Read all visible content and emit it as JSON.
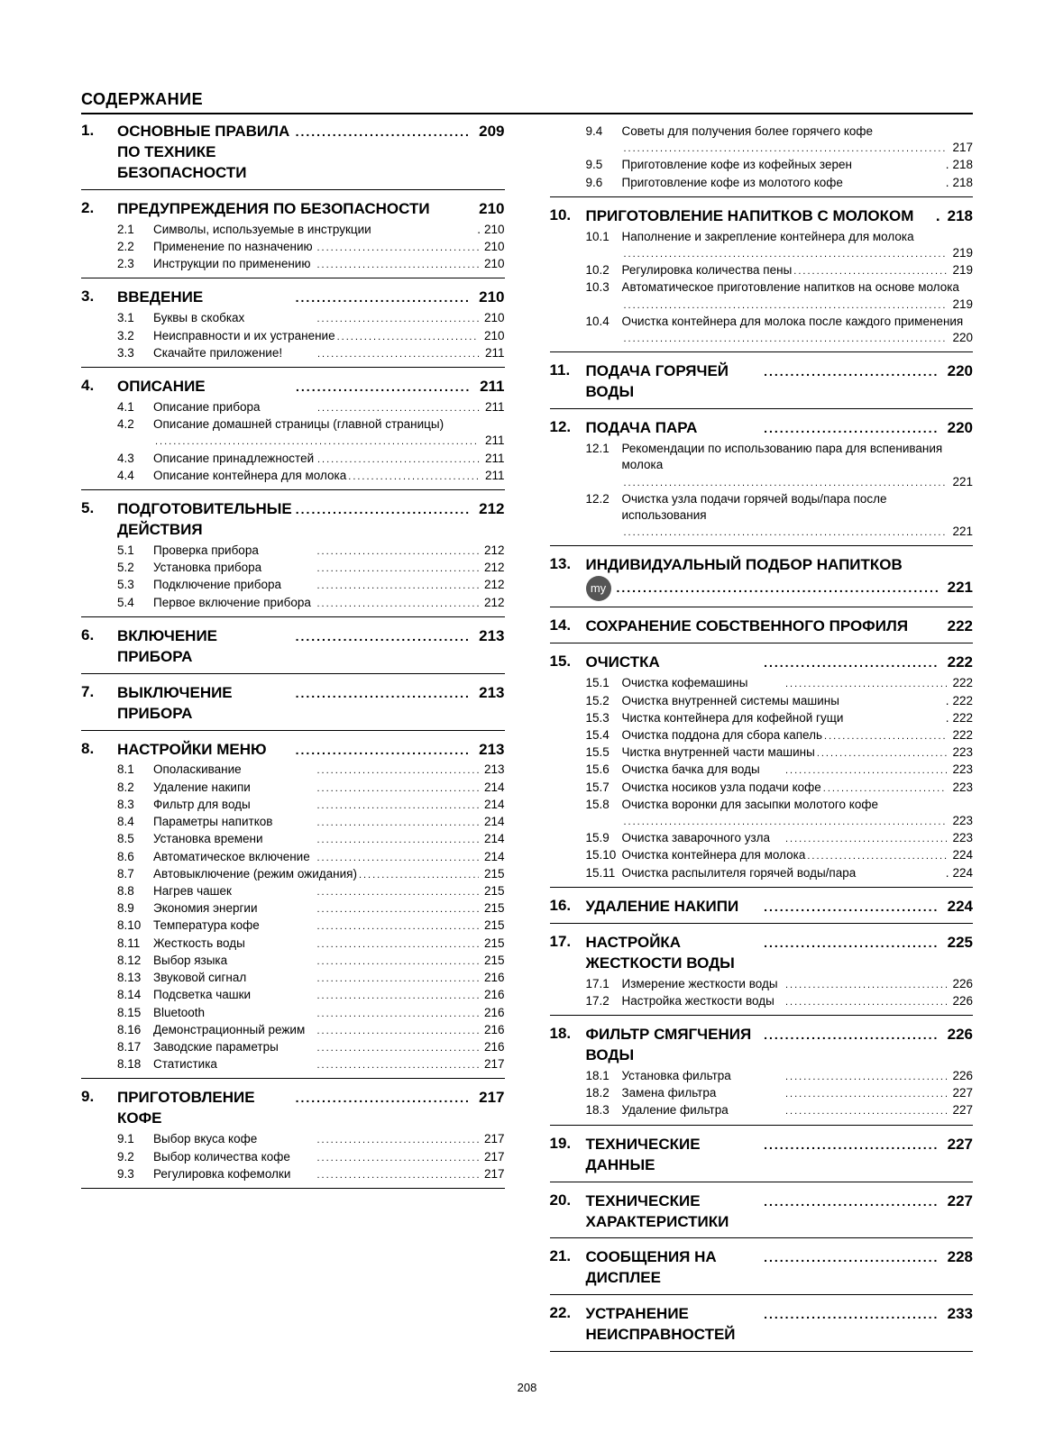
{
  "title": "СОДЕРЖАНИЕ",
  "page_number": "208",
  "columns": [
    [
      {
        "num": "1.",
        "title": "ОСНОВНЫЕ ПРАВИЛА ПО ТЕХНИКЕ БЕЗОПАСНОСТИ",
        "page": "209",
        "subs": []
      },
      {
        "num": "2.",
        "title": "ПРЕДУПРЕЖДЕНИЯ ПО БЕЗОПАСНОСТИ",
        "page": "210",
        "no_dots": true,
        "subs": [
          {
            "num": "2.1",
            "text": "Символы, используемые в инструкции",
            "page": "210",
            "tight": true
          },
          {
            "num": "2.2",
            "text": "Применение по назначению",
            "page": "210"
          },
          {
            "num": "2.3",
            "text": "Инструкции по применению",
            "page": "210"
          }
        ]
      },
      {
        "num": "3.",
        "title": "ВВЕДЕНИЕ",
        "page": "210",
        "subs": [
          {
            "num": "3.1",
            "text": "Буквы в скобках",
            "page": "210"
          },
          {
            "num": "3.2",
            "text": "Неисправности и их устранение",
            "page": "210"
          },
          {
            "num": "3.3",
            "text": "Скачайте приложение!",
            "page": "211"
          }
        ]
      },
      {
        "num": "4.",
        "title": "ОПИСАНИЕ",
        "page": "211",
        "subs": [
          {
            "num": "4.1",
            "text": "Описание прибора",
            "page": "211"
          },
          {
            "num": "4.2",
            "text": "Описание домашней страницы (главной страницы)",
            "page": "211",
            "wrap": true
          },
          {
            "num": "4.3",
            "text": "Описание принадлежностей",
            "page": "211"
          },
          {
            "num": "4.4",
            "text": "Описание контейнера для молока",
            "page": "211"
          }
        ]
      },
      {
        "num": "5.",
        "title": "ПОДГОТОВИТЕЛЬНЫЕ ДЕЙСТВИЯ",
        "page": "212",
        "subs": [
          {
            "num": "5.1",
            "text": "Проверка прибора",
            "page": "212"
          },
          {
            "num": "5.2",
            "text": "Установка прибора",
            "page": "212"
          },
          {
            "num": "5.3",
            "text": "Подключение прибора",
            "page": "212"
          },
          {
            "num": "5.4",
            "text": "Первое включение прибора",
            "page": "212"
          }
        ]
      },
      {
        "num": "6.",
        "title": "ВКЛЮЧЕНИЕ ПРИБОРА",
        "page": "213",
        "subs": []
      },
      {
        "num": "7.",
        "title": "ВЫКЛЮЧЕНИЕ ПРИБОРА",
        "page": "213",
        "subs": []
      },
      {
        "num": "8.",
        "title": "НАСТРОЙКИ МЕНЮ",
        "page": "213",
        "subs": [
          {
            "num": "8.1",
            "text": "Ополаскивание",
            "page": "213"
          },
          {
            "num": "8.2",
            "text": "Удаление накипи",
            "page": "214"
          },
          {
            "num": "8.3",
            "text": "Фильтр для воды",
            "page": "214"
          },
          {
            "num": "8.4",
            "text": "Параметры напитков",
            "page": "214"
          },
          {
            "num": "8.5",
            "text": "Установка времени",
            "page": "214"
          },
          {
            "num": "8.6",
            "text": "Автоматическое включение",
            "page": "214"
          },
          {
            "num": "8.7",
            "text": "Автовыключение (режим ожидания)",
            "page": "215"
          },
          {
            "num": "8.8",
            "text": "Нагрев чашек",
            "page": "215"
          },
          {
            "num": "8.9",
            "text": "Экономия энергии",
            "page": "215"
          },
          {
            "num": "8.10",
            "text": "Температура кофе",
            "page": "215"
          },
          {
            "num": "8.11",
            "text": "Жесткость воды",
            "page": "215"
          },
          {
            "num": "8.12",
            "text": "Выбор языка",
            "page": "215"
          },
          {
            "num": "8.13",
            "text": "Звуковой сигнал",
            "page": "216"
          },
          {
            "num": "8.14",
            "text": "Подсветка чашки",
            "page": "216"
          },
          {
            "num": "8.15",
            "text": "Bluetooth",
            "page": "216"
          },
          {
            "num": "8.16",
            "text": "Демонстрационный режим",
            "page": "216"
          },
          {
            "num": "8.17",
            "text": "Заводские параметры",
            "page": "216"
          },
          {
            "num": "8.18",
            "text": "Статистика",
            "page": "217"
          }
        ]
      },
      {
        "num": "9.",
        "title": "ПРИГОТОВЛЕНИЕ КОФЕ",
        "page": "217",
        "subs": [
          {
            "num": "9.1",
            "text": "Выбор вкуса кофе",
            "page": "217"
          },
          {
            "num": "9.2",
            "text": "Выбор количества кофе",
            "page": "217"
          },
          {
            "num": "9.3",
            "text": "Регулировка кофемолки",
            "page": "217"
          }
        ]
      }
    ],
    [
      {
        "continuation": true,
        "subs": [
          {
            "num": "9.4",
            "text": "Советы для получения более горячего кофе",
            "page": "217",
            "wrap": true
          },
          {
            "num": "9.5",
            "text": "Приготовление кофе из кофейных зерен",
            "page": "218",
            "tight": true
          },
          {
            "num": "9.6",
            "text": "Приготовление кофе из молотого кофе",
            "page": "218",
            "tight": true
          }
        ]
      },
      {
        "num": "10.",
        "title": "ПРИГОТОВЛЕНИЕ НАПИТКОВ С МОЛОКОМ",
        "page": "218",
        "no_dots": true,
        "tight_title": true,
        "subs": [
          {
            "num": "10.1",
            "text": "Наполнение и закрепление контейнера для молока",
            "page": "219",
            "wrap": true
          },
          {
            "num": "10.2",
            "text": "Регулировка количества пены",
            "page": "219"
          },
          {
            "num": "10.3",
            "text": "Автоматическое приготовление напитков на основе молока",
            "page": "219",
            "wrap": true
          },
          {
            "num": "10.4",
            "text": "Очистка контейнера для молока после каждого применения",
            "page": "220",
            "wrap": true
          }
        ]
      },
      {
        "num": "11.",
        "title": "ПОДАЧА ГОРЯЧЕЙ ВОДЫ",
        "page": "220",
        "subs": []
      },
      {
        "num": "12.",
        "title": "ПОДАЧА ПАРА",
        "page": "220",
        "subs": [
          {
            "num": "12.1",
            "text": "Рекомендации по использованию пара для вспенивания молока",
            "page": "221",
            "wrap": true
          },
          {
            "num": "12.2",
            "text": "Очистка узла подачи горячей воды/пара после использования",
            "page": "221",
            "wrap": true
          }
        ]
      },
      {
        "num": "13.",
        "title": "ИНДИВИДУАЛЬНЫЙ ПОДБОР НАПИТКОВ",
        "page": "221",
        "icon": "my",
        "subs": []
      },
      {
        "num": "14.",
        "title": "СОХРАНЕНИЕ СОБСТВЕННОГО ПРОФИЛЯ",
        "page": "222",
        "no_dots": true,
        "subs": []
      },
      {
        "num": "15.",
        "title": "ОЧИСТКА",
        "page": "222",
        "subs": [
          {
            "num": "15.1",
            "text": "Очистка кофемашины",
            "page": "222"
          },
          {
            "num": "15.2",
            "text": "Очистка внутренней системы машины",
            "page": "222",
            "tight": true
          },
          {
            "num": "15.3",
            "text": "Чистка контейнера для кофейной гущи",
            "page": "222",
            "tight": true
          },
          {
            "num": "15.4",
            "text": "Очистка поддона для сбора капель",
            "page": "222"
          },
          {
            "num": "15.5",
            "text": "Чистка внутренней части машины",
            "page": "223"
          },
          {
            "num": "15.6",
            "text": "Очистка бачка для воды",
            "page": "223"
          },
          {
            "num": "15.7",
            "text": "Очистка носиков узла подачи кофе",
            "page": "223"
          },
          {
            "num": "15.8",
            "text": "Очистка воронки для засыпки молотого кофе",
            "page": "223",
            "wrap": true
          },
          {
            "num": "15.9",
            "text": "Очистка заварочного узла",
            "page": "223"
          },
          {
            "num": "15.10",
            "text": "Очистка контейнера для молока",
            "page": "224"
          },
          {
            "num": "15.11",
            "text": "Очистка распылителя горячей воды/пара",
            "page": "224",
            "tight": true
          }
        ]
      },
      {
        "num": "16.",
        "title": "УДАЛЕНИЕ НАКИПИ",
        "page": "224",
        "subs": []
      },
      {
        "num": "17.",
        "title": "НАСТРОЙКА ЖЕСТКОСТИ ВОДЫ",
        "page": "225",
        "subs": [
          {
            "num": "17.1",
            "text": "Измерение жесткости воды",
            "page": "226"
          },
          {
            "num": "17.2",
            "text": "Настройка жесткости воды",
            "page": "226"
          }
        ]
      },
      {
        "num": "18.",
        "title": "ФИЛЬТР СМЯГЧЕНИЯ ВОДЫ",
        "page": "226",
        "subs": [
          {
            "num": "18.1",
            "text": "Установка фильтра",
            "page": "226"
          },
          {
            "num": "18.2",
            "text": "Замена фильтра",
            "page": "227"
          },
          {
            "num": "18.3",
            "text": "Удаление фильтра",
            "page": "227"
          }
        ]
      },
      {
        "num": "19.",
        "title": "ТЕХНИЧЕСКИЕ ДАННЫЕ",
        "page": "227",
        "subs": []
      },
      {
        "num": "20.",
        "title": "ТЕХНИЧЕСКИЕ ХАРАКТЕРИСТИКИ",
        "page": "227",
        "subs": []
      },
      {
        "num": "21.",
        "title": "СООБЩЕНИЯ НА ДИСПЛЕЕ",
        "page": "228",
        "subs": []
      },
      {
        "num": "22.",
        "title": "УСТРАНЕНИЕ НЕИСПРАВНОСТЕЙ",
        "page": "233",
        "subs": []
      }
    ]
  ]
}
